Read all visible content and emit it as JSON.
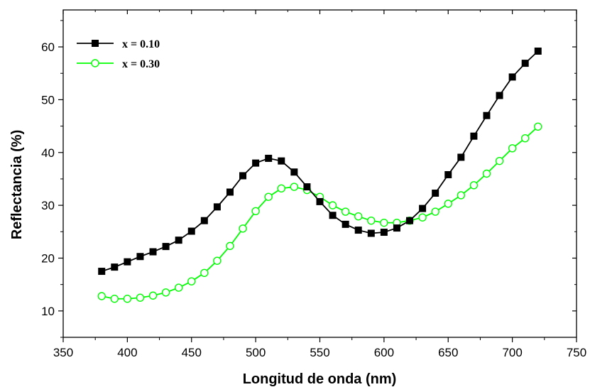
{
  "chart_data": {
    "type": "line",
    "xlabel": "Longitud de onda (nm)",
    "ylabel": "Reflectancia (%)",
    "xlim": [
      350,
      750
    ],
    "ylim": [
      5,
      67
    ],
    "xticks": [
      350,
      400,
      450,
      500,
      550,
      600,
      650,
      700,
      750
    ],
    "yticks": [
      10,
      20,
      30,
      40,
      50,
      60
    ],
    "grid": false,
    "legend_position": "top-left",
    "x": [
      380,
      390,
      400,
      410,
      420,
      430,
      440,
      450,
      460,
      470,
      480,
      490,
      500,
      510,
      520,
      530,
      540,
      550,
      560,
      570,
      580,
      590,
      600,
      610,
      620,
      630,
      640,
      650,
      660,
      670,
      680,
      690,
      700,
      710,
      720
    ],
    "series": [
      {
        "name": "x = 0.10",
        "color": "#000000",
        "marker": "filled-square",
        "values": [
          17.5,
          18.3,
          19.3,
          20.3,
          21.2,
          22.2,
          23.4,
          25.1,
          27.1,
          29.7,
          32.5,
          35.6,
          38.0,
          38.9,
          38.4,
          36.3,
          33.5,
          30.7,
          28.1,
          26.4,
          25.3,
          24.7,
          24.9,
          25.7,
          27.1,
          29.4,
          32.3,
          35.8,
          39.1,
          43.1,
          47.0,
          50.8,
          54.3,
          56.9,
          59.2
        ]
      },
      {
        "name": "x = 0.30",
        "color": "#00ff00",
        "marker": "open-circle",
        "values": [
          12.8,
          12.3,
          12.3,
          12.5,
          12.9,
          13.5,
          14.4,
          15.6,
          17.2,
          19.5,
          22.3,
          25.6,
          28.9,
          31.6,
          33.2,
          33.5,
          32.9,
          31.6,
          30.0,
          28.8,
          27.9,
          27.1,
          26.7,
          26.7,
          27.1,
          27.7,
          28.8,
          30.3,
          31.9,
          33.8,
          36.0,
          38.4,
          40.8,
          42.7,
          44.9
        ]
      }
    ]
  }
}
